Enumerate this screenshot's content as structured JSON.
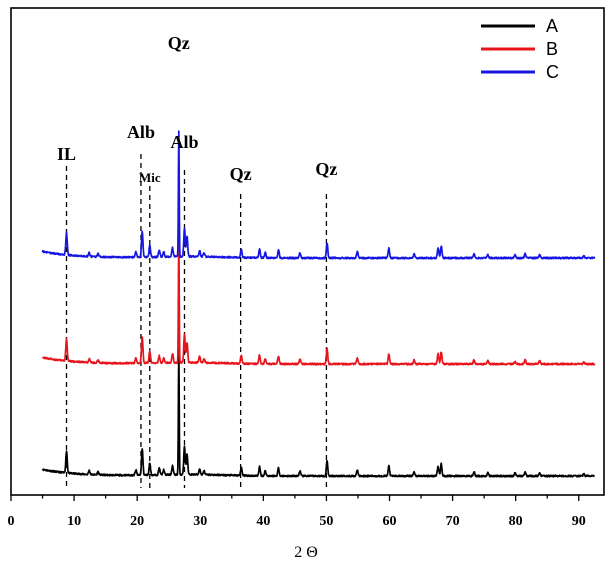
{
  "chart_data": {
    "type": "line",
    "title": "",
    "xlabel": "2 Θ",
    "ylabel": "",
    "xlim": [
      0,
      94
    ],
    "x_ticks": [
      0,
      10,
      20,
      30,
      40,
      50,
      60,
      70,
      80,
      90
    ],
    "grid": false,
    "legend": {
      "position": "top-right"
    },
    "series": [
      {
        "name": "A",
        "color": "#000000",
        "offset": 0
      },
      {
        "name": "B",
        "color": "#e8141c",
        "offset": 112
      },
      {
        "name": "C",
        "color": "#1616e0",
        "offset": 218
      }
    ],
    "peaks": [
      {
        "x": 8.8,
        "h": 22
      },
      {
        "x": 12.4,
        "h": 4
      },
      {
        "x": 13.8,
        "h": 3
      },
      {
        "x": 19.8,
        "h": 5
      },
      {
        "x": 20.8,
        "h": 26
      },
      {
        "x": 22.0,
        "h": 12
      },
      {
        "x": 23.5,
        "h": 7
      },
      {
        "x": 24.2,
        "h": 5
      },
      {
        "x": 25.6,
        "h": 9
      },
      {
        "x": 26.6,
        "h": 125
      },
      {
        "x": 27.5,
        "h": 28
      },
      {
        "x": 27.9,
        "h": 20
      },
      {
        "x": 29.9,
        "h": 6
      },
      {
        "x": 30.6,
        "h": 4
      },
      {
        "x": 36.5,
        "h": 8
      },
      {
        "x": 39.4,
        "h": 9
      },
      {
        "x": 40.3,
        "h": 5
      },
      {
        "x": 42.4,
        "h": 8
      },
      {
        "x": 45.8,
        "h": 5
      },
      {
        "x": 50.1,
        "h": 15
      },
      {
        "x": 54.9,
        "h": 6
      },
      {
        "x": 59.9,
        "h": 10
      },
      {
        "x": 63.9,
        "h": 4
      },
      {
        "x": 67.7,
        "h": 10
      },
      {
        "x": 68.2,
        "h": 12
      },
      {
        "x": 73.4,
        "h": 4
      },
      {
        "x": 75.6,
        "h": 3
      },
      {
        "x": 79.9,
        "h": 3
      },
      {
        "x": 81.5,
        "h": 4
      },
      {
        "x": 83.8,
        "h": 3
      },
      {
        "x": 90.8,
        "h": 2
      }
    ],
    "annotations": [
      {
        "text": "IL",
        "x": 8.8
      },
      {
        "text": "Alb",
        "x": 20.6
      },
      {
        "text": "Mic",
        "x": 22.0
      },
      {
        "text": "Qz",
        "x": 26.6
      },
      {
        "text": "Alb",
        "x": 27.5
      },
      {
        "text": "Qz",
        "x": 36.4
      },
      {
        "text": "Qz",
        "x": 50.0
      }
    ]
  }
}
